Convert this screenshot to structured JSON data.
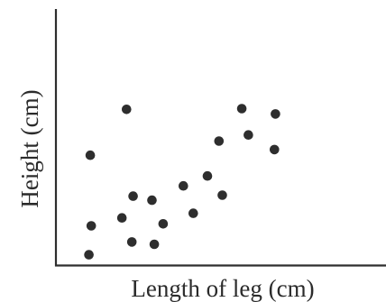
{
  "chart_data": {
    "type": "scatter",
    "title": "",
    "xlabel": "Length of leg (cm)",
    "ylabel": "Height (cm)",
    "xlim": [
      0,
      100
    ],
    "ylim": [
      0,
      100
    ],
    "grid": false,
    "ticks": false,
    "series": [
      {
        "values": [
          {
            "x": 10,
            "y": 4
          },
          {
            "x": 10.7,
            "y": 15.3
          },
          {
            "x": 10.4,
            "y": 42.9
          },
          {
            "x": 21.4,
            "y": 60.8
          },
          {
            "x": 20,
            "y": 18.4
          },
          {
            "x": 23.4,
            "y": 26.9
          },
          {
            "x": 23,
            "y": 9
          },
          {
            "x": 29.8,
            "y": 8.1
          },
          {
            "x": 29.1,
            "y": 25.3
          },
          {
            "x": 32.5,
            "y": 16.1
          },
          {
            "x": 38.6,
            "y": 30.9
          },
          {
            "x": 41.6,
            "y": 20.2
          },
          {
            "x": 45.9,
            "y": 34.8
          },
          {
            "x": 50.4,
            "y": 27.3
          },
          {
            "x": 49.4,
            "y": 48.4
          },
          {
            "x": 56.3,
            "y": 61.1
          },
          {
            "x": 58.3,
            "y": 50.8
          },
          {
            "x": 66.5,
            "y": 59
          },
          {
            "x": 66.2,
            "y": 45.1
          }
        ]
      }
    ],
    "colors": {
      "point": "#2e2e2e",
      "axis": "#2e2e2e",
      "text": "#2b2b2b"
    }
  }
}
